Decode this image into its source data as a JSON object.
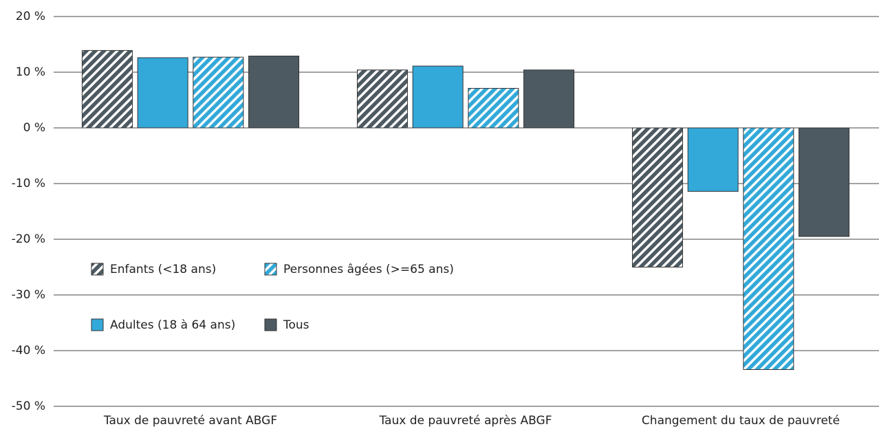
{
  "chart_data": {
    "type": "bar",
    "categories": [
      "Taux de pauvreté avant ABGF",
      "Taux de pauvreté après ABGF",
      "Changement du taux de pauvreté"
    ],
    "series": [
      {
        "name": "Enfants (<18 ans)",
        "color": "#4d5a62",
        "hatch": true,
        "values": [
          13.9,
          10.4,
          -25.0
        ]
      },
      {
        "name": "Adultes (18 à 64 ans)",
        "color": "#33a9d9",
        "hatch": false,
        "values": [
          12.6,
          11.1,
          -11.4
        ]
      },
      {
        "name": "Personnes âgées (>=65 ans)",
        "color": "#33a9d9",
        "hatch": true,
        "values": [
          12.7,
          7.1,
          -43.4
        ]
      },
      {
        "name": "Tous",
        "color": "#4d5a62",
        "hatch": false,
        "values": [
          12.9,
          10.4,
          -19.5
        ]
      }
    ],
    "ylim": [
      -50,
      20
    ],
    "yticks": [
      {
        "value": -50,
        "label": "-50 %"
      },
      {
        "value": -40,
        "label": "-40 %"
      },
      {
        "value": -30,
        "label": "-30 %"
      },
      {
        "value": -20,
        "label": "-20 %"
      },
      {
        "value": -10,
        "label": "-10 %"
      },
      {
        "value": 0,
        "label": "0 %"
      },
      {
        "value": 10,
        "label": "10 %"
      },
      {
        "value": 20,
        "label": "20 %"
      }
    ],
    "grid": true
  }
}
